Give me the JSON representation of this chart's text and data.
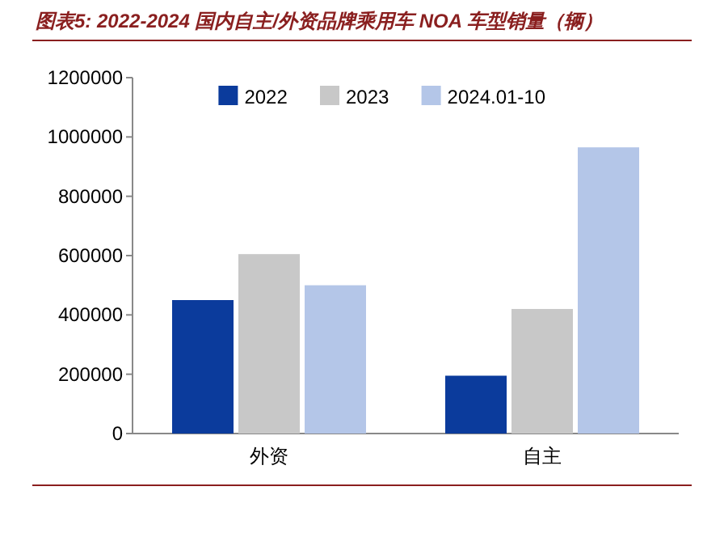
{
  "chart_data": {
    "type": "bar",
    "title": "图表5:  2022-2024 国内自主/外资品牌乘用车 NOA 车型销量（辆）",
    "categories": [
      "外资",
      "自主"
    ],
    "series": [
      {
        "name": "2022",
        "color": "#0b3b9c",
        "values": [
          450000,
          195000
        ]
      },
      {
        "name": "2023",
        "color": "#c8c8c8",
        "values": [
          605000,
          420000
        ]
      },
      {
        "name": "2024.01-10",
        "color": "#b4c6e8",
        "values": [
          500000,
          965000
        ]
      }
    ],
    "ylim": [
      0,
      1200000
    ],
    "yticks": [
      0,
      200000,
      400000,
      600000,
      800000,
      1000000,
      1200000
    ],
    "legend": "top",
    "grid": false
  }
}
